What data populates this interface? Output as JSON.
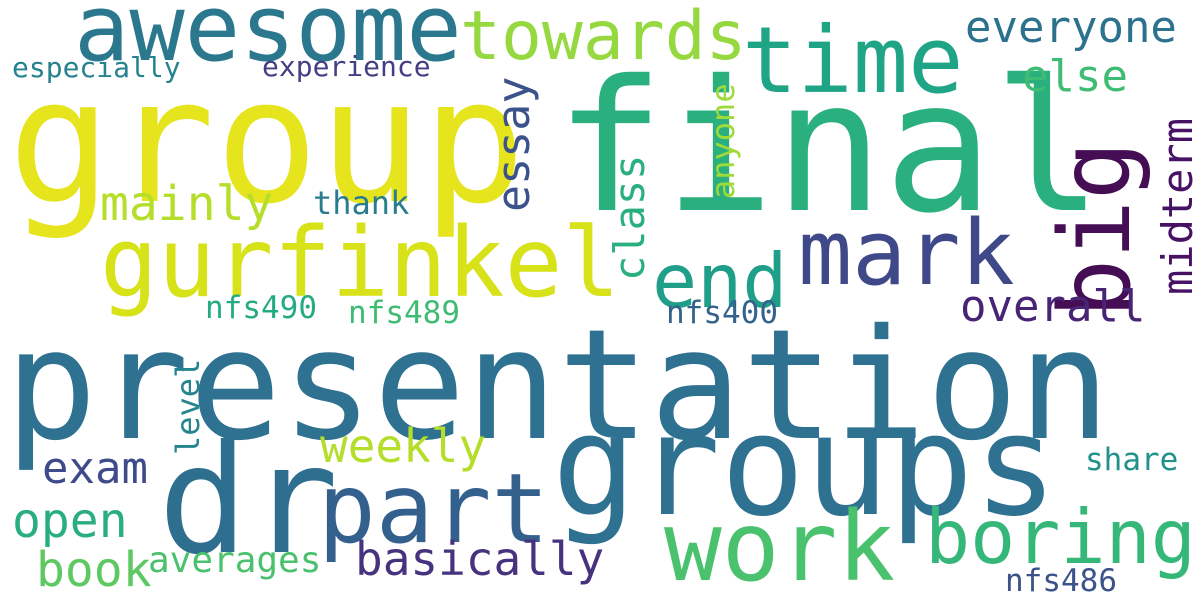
{
  "words": [
    {
      "text": "presentation",
      "color": "#2e7190"
    },
    {
      "text": "group",
      "color": "#e6e41c"
    },
    {
      "text": "final",
      "color": "#2ab07f"
    },
    {
      "text": "groups",
      "color": "#2e7190"
    },
    {
      "text": "awesome",
      "color": "#2a778e"
    },
    {
      "text": "dr",
      "color": "#2e6e8e"
    },
    {
      "text": "time",
      "color": "#20a486"
    },
    {
      "text": "towards",
      "color": "#95d840"
    },
    {
      "text": "gurfinkel",
      "color": "#d8e219"
    },
    {
      "text": "mark",
      "color": "#3f4889"
    },
    {
      "text": "big",
      "color": "#440d54"
    },
    {
      "text": "work",
      "color": "#4ac16d"
    },
    {
      "text": "part",
      "color": "#34608d"
    },
    {
      "text": "boring",
      "color": "#35b779"
    },
    {
      "text": "end",
      "color": "#1f9e89"
    },
    {
      "text": "everyone",
      "color": "#2c728e"
    },
    {
      "text": "else",
      "color": "#3fbc73"
    },
    {
      "text": "essay",
      "color": "#3b528b"
    },
    {
      "text": "midterm",
      "color": "#471164"
    },
    {
      "text": "mainly",
      "color": "#b5de2b"
    },
    {
      "text": "class",
      "color": "#2ab07f"
    },
    {
      "text": "anyone",
      "color": "#a0da39"
    },
    {
      "text": "overall",
      "color": "#482475"
    },
    {
      "text": "weekly",
      "color": "#b5de2b"
    },
    {
      "text": "exam",
      "color": "#3e4a89"
    },
    {
      "text": "basically",
      "color": "#46327e"
    },
    {
      "text": "open",
      "color": "#29af7f"
    },
    {
      "text": "book",
      "color": "#5ec962"
    },
    {
      "text": "averages",
      "color": "#4ac16d"
    },
    {
      "text": "especially",
      "color": "#26828e"
    },
    {
      "text": "experience",
      "color": "#423f85"
    },
    {
      "text": "thank",
      "color": "#287c8e"
    },
    {
      "text": "nfs490",
      "color": "#25ab82"
    },
    {
      "text": "nfs489",
      "color": "#3fbc73"
    },
    {
      "text": "nfs400",
      "color": "#33638d"
    },
    {
      "text": "level",
      "color": "#25848e"
    },
    {
      "text": "share",
      "color": "#21918c"
    },
    {
      "text": "nfs486",
      "color": "#3b528b"
    }
  ]
}
